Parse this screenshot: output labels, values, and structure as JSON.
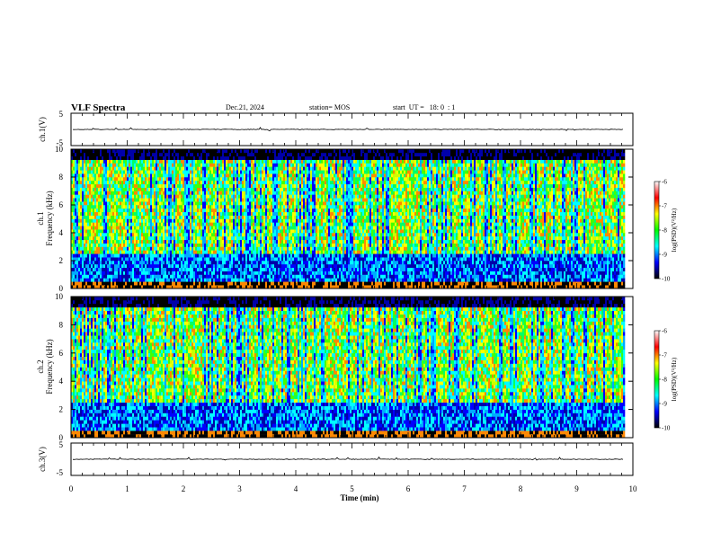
{
  "header": {
    "title": "VLF Spectra",
    "date": "Dec.21, 2024",
    "station": "station= MOS",
    "start": "start  UT =   18: 0  : 1"
  },
  "chart_data": [
    {
      "id": "ch1-waveform",
      "type": "line",
      "ylabel": "ch.1(V)",
      "ylim": [
        -5,
        5
      ],
      "yticks": [
        "5",
        "-5"
      ],
      "xlim": [
        0,
        10
      ],
      "trace_level": 0
    },
    {
      "id": "ch1-spectrogram",
      "type": "heatmap",
      "ylabel_line1": "ch.1",
      "ylabel_line2": "Frequency (kHz)",
      "ylim": [
        0,
        10
      ],
      "yticks": [
        "0",
        "2",
        "4",
        "6",
        "8",
        "10"
      ],
      "xlim": [
        0,
        10
      ],
      "data_end_min": 9.83,
      "colorbar": {
        "label": "log(PSD)(V²/Hz)",
        "range": [
          -10,
          -6
        ],
        "ticks": [
          "-6",
          "-7",
          "-8",
          "-9",
          "-10"
        ]
      }
    },
    {
      "id": "ch2-spectrogram",
      "type": "heatmap",
      "ylabel_line1": "ch.2",
      "ylabel_line2": "Frequency (kHz)",
      "ylim": [
        0,
        10
      ],
      "yticks": [
        "0",
        "2",
        "4",
        "6",
        "8",
        "10"
      ],
      "xlim": [
        0,
        10
      ],
      "data_end_min": 9.83,
      "colorbar": {
        "label": "log(PSD)(V²/Hz)",
        "range": [
          -10,
          -6
        ],
        "ticks": [
          "-6",
          "-7",
          "-8",
          "-9",
          "-10"
        ]
      }
    },
    {
      "id": "ch3-waveform",
      "type": "line",
      "ylabel": "ch.3(V)",
      "ylim": [
        -5,
        5
      ],
      "yticks": [
        "5",
        "-5"
      ],
      "xlim": [
        0,
        10
      ],
      "trace_level": 0
    }
  ],
  "xaxis": {
    "label": "Time (min)",
    "ticks": [
      "0",
      "1",
      "2",
      "3",
      "4",
      "5",
      "6",
      "7",
      "8",
      "9",
      "10"
    ]
  },
  "colors": {
    "colormap": [
      "#000000",
      "#0000aa",
      "#0000ff",
      "#00aaff",
      "#00ffff",
      "#00ff66",
      "#44ff00",
      "#ccff00",
      "#ffff00",
      "#ff8800",
      "#ff0000",
      "#ffffff"
    ]
  }
}
